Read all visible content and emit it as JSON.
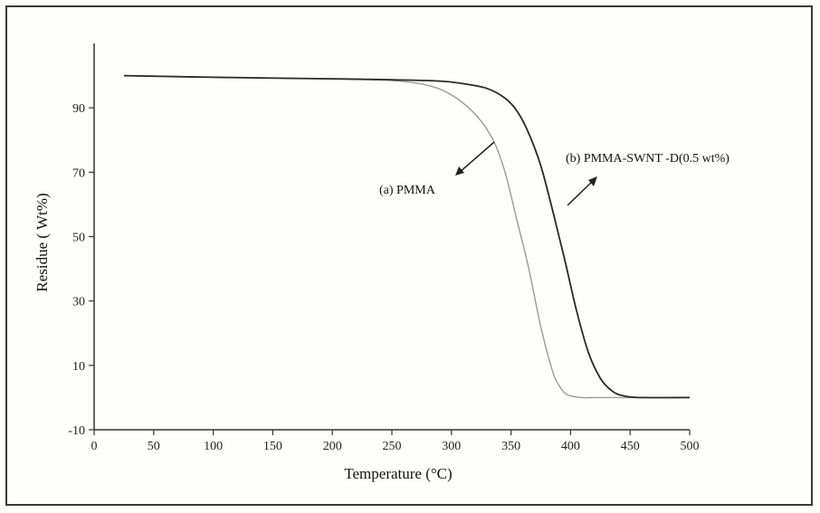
{
  "chart_data": {
    "type": "line",
    "title": "",
    "xlabel": "Temperature (°C)",
    "ylabel": "Residue ( Wt%)",
    "xlim": [
      0,
      500
    ],
    "ylim": [
      -10,
      110
    ],
    "x_ticks": [
      0,
      50,
      100,
      150,
      200,
      250,
      300,
      350,
      400,
      450,
      500
    ],
    "y_ticks": [
      -10,
      10,
      30,
      50,
      70,
      90
    ],
    "grid": false,
    "legend": "none",
    "series": [
      {
        "name": "(a) PMMA",
        "color": "#9a9a9a",
        "x": [
          25,
          100,
          200,
          250,
          280,
          300,
          320,
          335,
          345,
          355,
          365,
          375,
          385,
          390,
          395,
          400,
          410,
          420,
          450,
          500
        ],
        "y": [
          100,
          99.5,
          99,
          98.5,
          97,
          94,
          88,
          80,
          70,
          55,
          40,
          22,
          8,
          4,
          1.5,
          0.5,
          0,
          0,
          0,
          0
        ]
      },
      {
        "name": "(b) PMMA-SWNT -D(0.5 wt%)",
        "color": "#2a2a2a",
        "x": [
          25,
          100,
          200,
          250,
          290,
          310,
          330,
          345,
          355,
          365,
          375,
          385,
          395,
          405,
          415,
          425,
          435,
          445,
          460,
          500
        ],
        "y": [
          100,
          99.5,
          99,
          98.7,
          98.3,
          97.5,
          96,
          93,
          89,
          82,
          72,
          58,
          43,
          27,
          14,
          6,
          2,
          0.5,
          0,
          0
        ]
      }
    ],
    "annotations": [
      {
        "text": "(a) PMMA",
        "arrow": "down-left"
      },
      {
        "text": "(b) PMMA-SWNT -D(0.5 wt%)",
        "arrow": "up-right"
      }
    ]
  }
}
